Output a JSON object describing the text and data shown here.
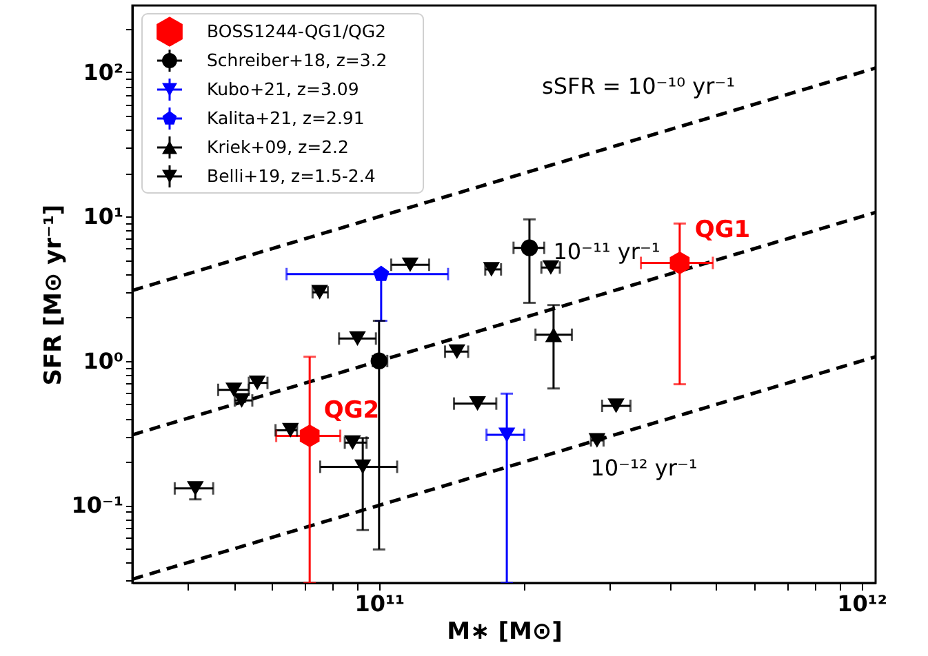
{
  "chart_data": {
    "type": "scatter",
    "xlabel": "M∗ [M⊙]",
    "ylabel": "SFR [M⊙ yr⁻¹]",
    "log": "xy",
    "xlim": [
      30800000000.0,
      1070000000000.0
    ],
    "ylim": [
      0.029,
      290
    ],
    "xticks": [
      {
        "value": 40000000000.0,
        "label": null
      },
      {
        "value": 50000000000.0,
        "label": null
      },
      {
        "value": 60000000000.0,
        "label": null
      },
      {
        "value": 70000000000.0,
        "label": null
      },
      {
        "value": 80000000000.0,
        "label": null
      },
      {
        "value": 90000000000.0,
        "label": null
      },
      {
        "value": 100000000000.0,
        "label": "10¹¹"
      },
      {
        "value": 200000000000.0,
        "label": null
      },
      {
        "value": 300000000000.0,
        "label": null
      },
      {
        "value": 400000000000.0,
        "label": null
      },
      {
        "value": 500000000000.0,
        "label": null
      },
      {
        "value": 600000000000.0,
        "label": null
      },
      {
        "value": 700000000000.0,
        "label": null
      },
      {
        "value": 800000000000.0,
        "label": null
      },
      {
        "value": 900000000000.0,
        "label": null
      },
      {
        "value": 1000000000000.0,
        "label": "10¹²"
      }
    ],
    "yticks": [
      {
        "value": 0.03,
        "label": null
      },
      {
        "value": 0.04,
        "label": null
      },
      {
        "value": 0.05,
        "label": null
      },
      {
        "value": 0.06,
        "label": null
      },
      {
        "value": 0.07,
        "label": null
      },
      {
        "value": 0.08,
        "label": null
      },
      {
        "value": 0.09,
        "label": null
      },
      {
        "value": 0.1,
        "label": "10⁻¹"
      },
      {
        "value": 0.2,
        "label": null
      },
      {
        "value": 0.3,
        "label": null
      },
      {
        "value": 0.4,
        "label": null
      },
      {
        "value": 0.5,
        "label": null
      },
      {
        "value": 0.6,
        "label": null
      },
      {
        "value": 0.7,
        "label": null
      },
      {
        "value": 0.8,
        "label": null
      },
      {
        "value": 0.9,
        "label": null
      },
      {
        "value": 1,
        "label": "10⁰"
      },
      {
        "value": 2,
        "label": null
      },
      {
        "value": 3,
        "label": null
      },
      {
        "value": 4,
        "label": null
      },
      {
        "value": 5,
        "label": null
      },
      {
        "value": 6,
        "label": null
      },
      {
        "value": 7,
        "label": null
      },
      {
        "value": 8,
        "label": null
      },
      {
        "value": 9,
        "label": null
      },
      {
        "value": 10,
        "label": "10¹"
      },
      {
        "value": 20,
        "label": null
      },
      {
        "value": 30,
        "label": null
      },
      {
        "value": 40,
        "label": null
      },
      {
        "value": 50,
        "label": null
      },
      {
        "value": 60,
        "label": null
      },
      {
        "value": 70,
        "label": null
      },
      {
        "value": 80,
        "label": null
      },
      {
        "value": 90,
        "label": null
      },
      {
        "value": 100,
        "label": "10²"
      },
      {
        "value": 200,
        "label": null
      }
    ],
    "grid": false,
    "legend": "top left",
    "series": [
      {
        "name": "BOSS1244-QG1/QG2",
        "color": "#ff0000",
        "x": [
          420000000000.0,
          71800000000.0
        ],
        "values": [
          4.78,
          0.303
        ],
        "xerrors": [
          [
            349000000000.0,
            492000000000.0
          ],
          [
            61200000000.0,
            83100000000.0
          ]
        ],
        "errors": [
          [
            0.69,
            8.96
          ],
          [
            0.029,
            1.07
          ]
        ]
      },
      {
        "name": "Schreiber+18, z=3.2",
        "color": "#000000",
        "x": [
          100000000000.0,
          205000000000.0
        ],
        "values": [
          1.0,
          6.08
        ],
        "xerrors": [
          [
            97000000000.0,
            104000000000.0
          ],
          [
            190000000000.0,
            220000000000.0
          ]
        ],
        "errors": [
          [
            0.0495,
            1.9
          ],
          [
            2.53,
            9.57
          ]
        ]
      },
      {
        "name": "Kubo+21, z=3.09",
        "color": "#0000ff",
        "x": [
          184000000000.0
        ],
        "values": [
          0.308
        ],
        "xerrors": [
          [
            167000000000.0,
            200000000000.0
          ]
        ],
        "errors": [
          [
            0.029,
            0.594
          ]
        ]
      },
      {
        "name": "Kalita+21, z=2.91",
        "color": "#0000ff",
        "x": [
          101000000000.0
        ],
        "values": [
          4.0
        ],
        "xerrors": [
          [
            64300000000.0,
            139000000000.0
          ]
        ],
        "errors": [
          [
            1.9,
            4.0
          ]
        ]
      },
      {
        "name": "Kriek+09, z=2.2",
        "color": "#000000",
        "x": [
          230000000000.0
        ],
        "values": [
          1.52
        ],
        "xerrors": [
          [
            211000000000.0,
            251000000000.0
          ]
        ],
        "errors": [
          [
            0.645,
            2.44
          ]
        ]
      },
      {
        "name": "Belli+19, z=1.5-2.4",
        "color": "#000000",
        "x": [
          41600000000.0,
          50000000000.0,
          51900000000.0,
          55900000000.0,
          65500000000.0,
          75300000000.0,
          90200000000.0,
          88100000000.0,
          92500000000.0,
          116000000000.0,
          145000000000.0,
          160000000000.0,
          171000000000.0,
          227000000000.0,
          283000000000.0,
          310000000000.0
        ],
        "values": [
          0.131,
          0.631,
          0.533,
          0.705,
          0.331,
          2.99,
          1.43,
          0.272,
          0.185,
          4.64,
          1.16,
          0.507,
          4.31,
          4.44,
          0.282,
          0.489
        ],
        "xerrors": [
          [
            37700000000.0,
            45300000000.0
          ],
          [
            46400000000.0,
            53700000000.0
          ],
          [
            50200000000.0,
            54600000000.0
          ],
          [
            53700000000.0,
            58700000000.0
          ],
          [
            61000000000.0,
            67600000000.0
          ],
          [
            72800000000.0,
            78300000000.0
          ],
          [
            82600000000.0,
            98500000000.0
          ],
          [
            84900000000.0,
            94200000000.0
          ],
          [
            75500000000.0,
            109000000000.0
          ],
          [
            106000000000.0,
            127000000000.0
          ],
          [
            137000000000.0,
            153000000000.0
          ],
          [
            143000000000.0,
            175000000000.0
          ],
          [
            166000000000.0,
            179000000000.0
          ],
          [
            217000000000.0,
            237000000000.0
          ],
          [
            275000000000.0,
            292000000000.0
          ],
          [
            290000000000.0,
            332000000000.0
          ]
        ],
        "errors": [
          [
            0.11,
            0.14
          ],
          null,
          null,
          null,
          null,
          null,
          null,
          null,
          [
            0.0674,
            0.293
          ],
          null,
          null,
          null,
          null,
          null,
          null,
          null
        ]
      },
      {
        "type": "line",
        "line_style": "dashed",
        "color": "#000000",
        "x": [
          30800000000.0,
          1070000000000.0
        ],
        "values": [
          3.08,
          107
        ]
      },
      {
        "type": "line",
        "line_style": "dashed",
        "color": "#000000",
        "x": [
          30800000000.0,
          1070000000000.0
        ],
        "values": [
          0.308,
          10.7
        ]
      },
      {
        "type": "line",
        "line_style": "dashed",
        "color": "#000000",
        "x": [
          30800000000.0,
          1070000000000.0
        ],
        "values": [
          0.0308,
          1.07
        ]
      }
    ],
    "annotations": [
      "sSFR = 10⁻¹⁰ yr⁻¹",
      "10⁻¹¹ yr⁻¹",
      "10⁻¹² yr⁻¹",
      "QG1",
      "QG2"
    ]
  }
}
